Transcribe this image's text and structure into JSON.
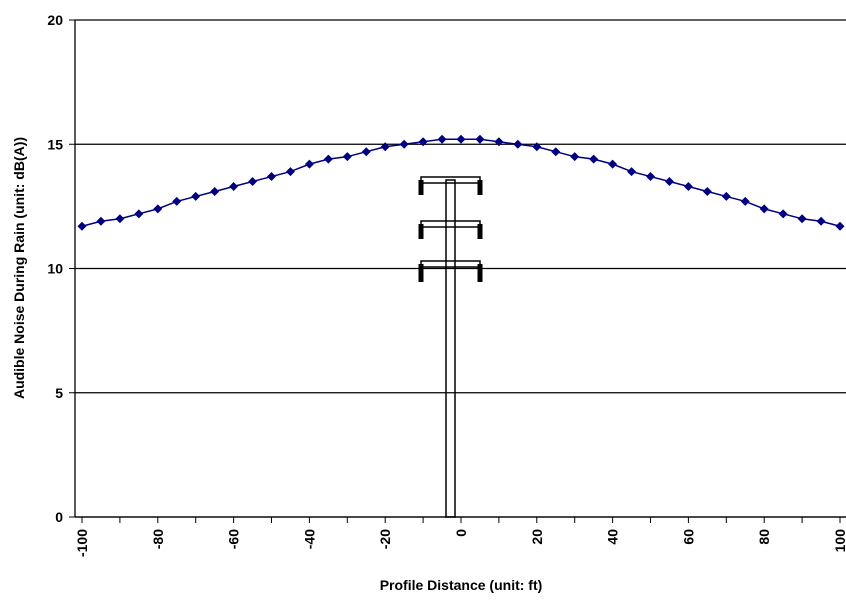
{
  "chart_data": {
    "type": "line",
    "x_label": "Profile Distance (unit: ft)",
    "y_label": "Audible Noise During Rain (unit: dB(A))",
    "x": [
      -100,
      -95,
      -90,
      -85,
      -80,
      -75,
      -70,
      -65,
      -60,
      -55,
      -50,
      -45,
      -40,
      -35,
      -30,
      -25,
      -20,
      -15,
      -10,
      -5,
      0,
      5,
      10,
      15,
      20,
      25,
      30,
      35,
      40,
      45,
      50,
      55,
      60,
      65,
      70,
      75,
      80,
      85,
      90,
      95,
      100
    ],
    "series": [
      {
        "color": "#000080",
        "values": [
          11.7,
          11.9,
          12.0,
          12.2,
          12.4,
          12.7,
          12.9,
          13.1,
          13.3,
          13.5,
          13.7,
          13.9,
          14.2,
          14.4,
          14.5,
          14.7,
          14.9,
          15.0,
          15.1,
          15.2,
          15.2,
          15.2,
          15.1,
          15.0,
          14.9,
          14.7,
          14.5,
          14.4,
          14.2,
          13.9,
          13.7,
          13.5,
          13.3,
          13.1,
          12.9,
          12.7,
          12.4,
          12.2,
          12.0,
          11.9,
          11.7
        ]
      }
    ],
    "xlim": [
      -100,
      100
    ],
    "xticks": [
      -100,
      -80,
      -60,
      -40,
      -20,
      0,
      20,
      40,
      60,
      80,
      100
    ],
    "xminorticks": [
      -90,
      -70,
      -50,
      -30,
      -10,
      10,
      30,
      50,
      70,
      90
    ],
    "ylim": [
      0,
      20
    ],
    "yticks": [
      0,
      5,
      10,
      15,
      20
    ],
    "grid": true
  }
}
